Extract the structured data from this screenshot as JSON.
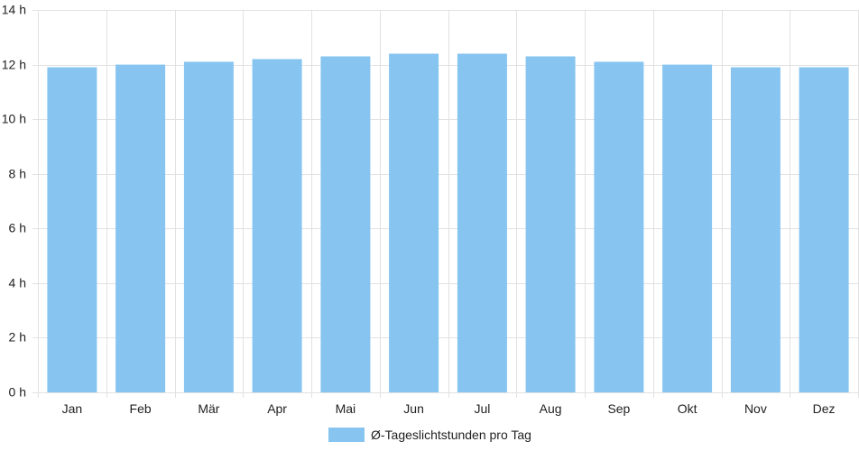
{
  "chart_data": {
    "type": "bar",
    "categories": [
      "Jan",
      "Feb",
      "Mär",
      "Apr",
      "Mai",
      "Jun",
      "Jul",
      "Aug",
      "Sep",
      "Okt",
      "Nov",
      "Dez"
    ],
    "series": [
      {
        "name": "Ø-Tageslichtstunden pro Tag",
        "values": [
          11.9,
          12.0,
          12.1,
          12.2,
          12.3,
          12.4,
          12.4,
          12.3,
          12.1,
          12.0,
          11.9,
          11.9
        ],
        "color": "#87c5f0"
      }
    ],
    "ylim": [
      0,
      14
    ],
    "yticks": [
      {
        "value": 0,
        "label": "0 h"
      },
      {
        "value": 2,
        "label": "2 h"
      },
      {
        "value": 4,
        "label": "4 h"
      },
      {
        "value": 6,
        "label": "6 h"
      },
      {
        "value": 8,
        "label": "8 h"
      },
      {
        "value": 10,
        "label": "10 h"
      },
      {
        "value": 12,
        "label": "12 h"
      },
      {
        "value": 14,
        "label": "14 h"
      }
    ],
    "grid": true,
    "legend_position": "bottom-center"
  }
}
